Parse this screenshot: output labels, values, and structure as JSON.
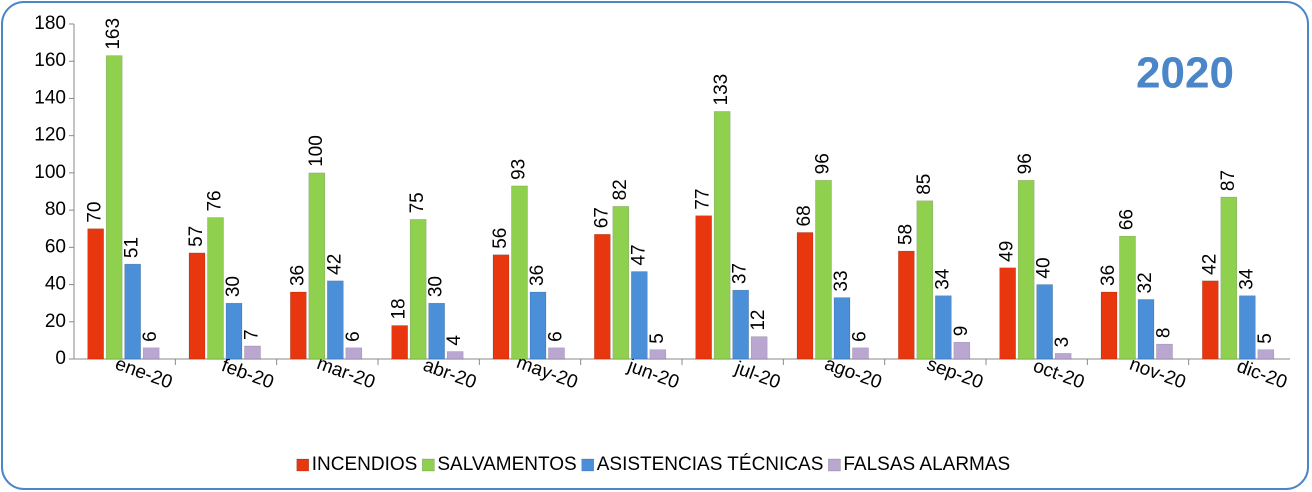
{
  "chart_data": {
    "type": "bar",
    "annotation": "2020",
    "categories": [
      "ene-20",
      "feb-20",
      "mar-20",
      "abr-20",
      "may-20",
      "jun-20",
      "jul-20",
      "ago-20",
      "sep-20",
      "oct-20",
      "nov-20",
      "dic-20"
    ],
    "series": [
      {
        "name": "INCENDIOS",
        "color": "#e8360e",
        "values": [
          70,
          57,
          36,
          18,
          56,
          67,
          77,
          68,
          58,
          49,
          36,
          42
        ]
      },
      {
        "name": "SALVAMENTOS",
        "color": "#8fd14f",
        "values": [
          163,
          76,
          100,
          75,
          93,
          82,
          133,
          96,
          85,
          96,
          66,
          87
        ]
      },
      {
        "name": "ASISTENCIAS TÉCNICAS",
        "color": "#4a8fd8",
        "values": [
          51,
          30,
          42,
          30,
          36,
          47,
          37,
          33,
          34,
          40,
          32,
          34
        ]
      },
      {
        "name": "FALSAS ALARMAS",
        "color": "#b9a7d1",
        "values": [
          6,
          7,
          6,
          4,
          6,
          5,
          12,
          6,
          9,
          3,
          8,
          5
        ]
      }
    ],
    "ylim": [
      0,
      180
    ],
    "yticks": [
      0,
      20,
      40,
      60,
      80,
      100,
      120,
      140,
      160,
      180
    ],
    "grid": false,
    "legend": "bottom"
  }
}
